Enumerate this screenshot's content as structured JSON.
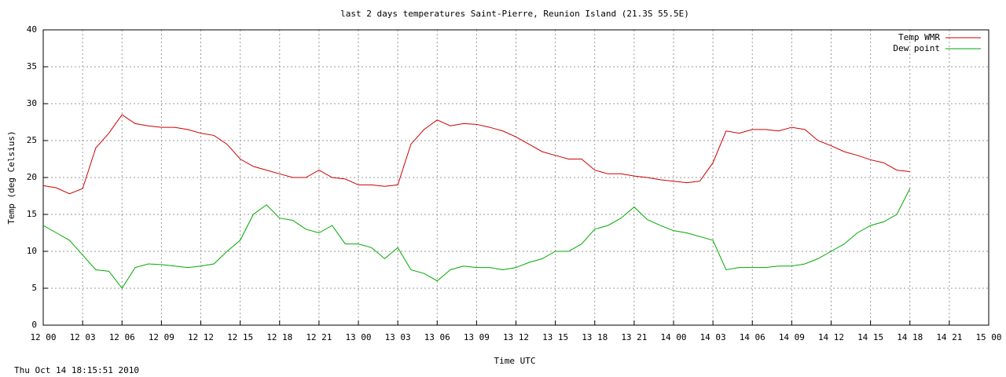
{
  "chart_data": {
    "type": "line",
    "title": "last 2 days temperatures Saint-Pierre, Reunion Island (21.3S 55.5E)",
    "x_label": "Time UTC",
    "y_label": "Temp (deg Celsius)",
    "footer": "Thu Oct 14 18:15:51 2010",
    "xlim": [
      0,
      72
    ],
    "ylim": [
      0,
      40
    ],
    "yticks": [
      0,
      5,
      10,
      15,
      20,
      25,
      30,
      35,
      40
    ],
    "xticks": [
      {
        "value": 0,
        "label": "12 00"
      },
      {
        "value": 3,
        "label": "12 03"
      },
      {
        "value": 6,
        "label": "12 06"
      },
      {
        "value": 9,
        "label": "12 09"
      },
      {
        "value": 12,
        "label": "12 12"
      },
      {
        "value": 15,
        "label": "12 15"
      },
      {
        "value": 18,
        "label": "12 18"
      },
      {
        "value": 21,
        "label": "12 21"
      },
      {
        "value": 24,
        "label": "13 00"
      },
      {
        "value": 27,
        "label": "13 03"
      },
      {
        "value": 30,
        "label": "13 06"
      },
      {
        "value": 33,
        "label": "13 09"
      },
      {
        "value": 36,
        "label": "13 12"
      },
      {
        "value": 39,
        "label": "13 15"
      },
      {
        "value": 42,
        "label": "13 18"
      },
      {
        "value": 45,
        "label": "13 21"
      },
      {
        "value": 48,
        "label": "14 00"
      },
      {
        "value": 51,
        "label": "14 03"
      },
      {
        "value": 54,
        "label": "14 06"
      },
      {
        "value": 57,
        "label": "14 09"
      },
      {
        "value": 60,
        "label": "14 12"
      },
      {
        "value": 63,
        "label": "14 15"
      },
      {
        "value": 66,
        "label": "14 18"
      },
      {
        "value": 69,
        "label": "14 21"
      },
      {
        "value": 72,
        "label": "15 00"
      }
    ],
    "grid": true,
    "legend": "top-right",
    "x": [
      0,
      1,
      2,
      3,
      4,
      5,
      6,
      7,
      8,
      9,
      10,
      11,
      12,
      13,
      14,
      15,
      16,
      17,
      18,
      19,
      20,
      21,
      22,
      23,
      24,
      25,
      26,
      27,
      28,
      29,
      30,
      31,
      32,
      33,
      34,
      35,
      36,
      37,
      38,
      39,
      40,
      41,
      42,
      43,
      44,
      45,
      46,
      47,
      48,
      49,
      50,
      51,
      52,
      53,
      54,
      55,
      56,
      57,
      58,
      59,
      60,
      61,
      62,
      63,
      64,
      65,
      66
    ],
    "series": [
      {
        "name": "Temp WMR",
        "color": "#cc0000",
        "values": [
          18.9,
          18.6,
          17.8,
          18.5,
          24.0,
          26.0,
          28.5,
          27.3,
          27.0,
          26.8,
          26.8,
          26.5,
          26.0,
          25.7,
          24.5,
          22.5,
          21.5,
          21.0,
          20.5,
          20.0,
          20.0,
          21.0,
          20.0,
          19.8,
          19.0,
          19.0,
          18.8,
          19.0,
          24.5,
          26.5,
          27.8,
          27.0,
          27.3,
          27.2,
          26.8,
          26.3,
          25.5,
          24.5,
          23.5,
          23.0,
          22.5,
          22.5,
          21.0,
          20.5,
          20.5,
          20.2,
          20.0,
          19.7,
          19.5,
          19.3,
          19.5,
          22.0,
          26.3,
          26.0,
          26.5,
          26.5,
          26.3,
          26.8,
          26.5,
          25.0,
          24.3,
          23.5,
          23.0,
          22.4,
          22.0,
          21.0,
          20.8
        ]
      },
      {
        "name": "Dew point",
        "color": "#00aa00",
        "values": [
          13.5,
          12.5,
          11.5,
          9.5,
          7.5,
          7.3,
          5.0,
          7.8,
          8.3,
          8.2,
          8.0,
          7.8,
          8.0,
          8.3,
          10.0,
          11.5,
          15.0,
          16.3,
          14.5,
          14.2,
          13.0,
          12.5,
          13.5,
          11.0,
          11.0,
          10.5,
          9.0,
          10.5,
          7.5,
          7.0,
          6.0,
          7.5,
          8.0,
          7.8,
          7.8,
          7.5,
          7.8,
          8.5,
          9.0,
          10.0,
          10.0,
          11.0,
          13.0,
          13.5,
          14.5,
          16.0,
          14.3,
          13.5,
          12.8,
          12.5,
          12.0,
          11.5,
          7.5,
          7.8,
          7.8,
          7.8,
          8.0,
          8.0,
          8.3,
          9.0,
          10.0,
          11.0,
          12.5,
          13.5,
          14.0,
          15.0,
          18.5
        ]
      }
    ]
  }
}
